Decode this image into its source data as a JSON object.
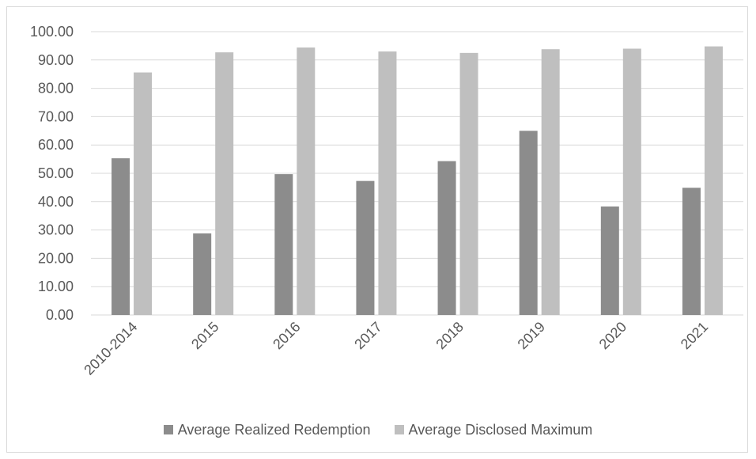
{
  "chart_data": {
    "type": "bar",
    "categories": [
      "2010-2014",
      "2015",
      "2016",
      "2017",
      "2018",
      "2019",
      "2020",
      "2021"
    ],
    "series": [
      {
        "name": "Average Realized Redemption",
        "color": "#8c8c8c",
        "values": [
          55.3,
          28.8,
          49.7,
          47.3,
          54.3,
          65.0,
          38.3,
          44.9
        ]
      },
      {
        "name": "Average Disclosed Maximum",
        "color": "#bfbfbf",
        "values": [
          85.6,
          92.7,
          94.4,
          93.0,
          92.5,
          93.8,
          94.0,
          94.8
        ]
      }
    ],
    "yticks": [
      "0.00",
      "10.00",
      "20.00",
      "30.00",
      "40.00",
      "50.00",
      "60.00",
      "70.00",
      "80.00",
      "90.00",
      "100.00"
    ],
    "ylim": [
      0,
      100
    ],
    "grid": true,
    "legend_position": "bottom",
    "title": "",
    "xlabel": "",
    "ylabel": ""
  }
}
